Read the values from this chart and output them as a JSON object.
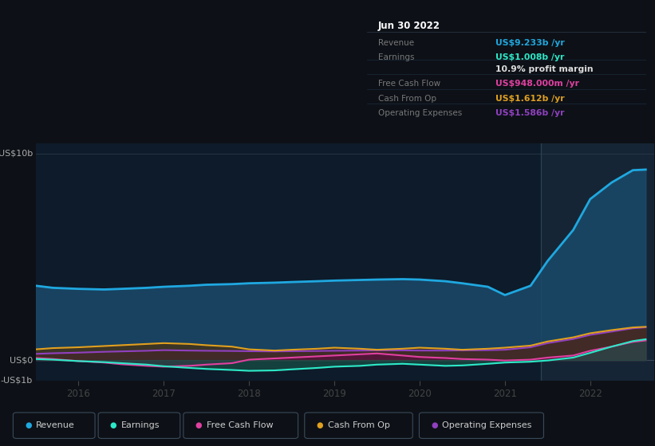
{
  "background_color": "#0d1117",
  "plot_bg_color": "#0d1b2a",
  "ylim": [
    -1.0,
    10.5
  ],
  "xlim": [
    2015.5,
    2022.75
  ],
  "xticks": [
    2016,
    2017,
    2018,
    2019,
    2020,
    2021,
    2022
  ],
  "ylabel_top": "US$10b",
  "ylabel_zero": "US$0",
  "ylabel_neg": "-US$1b",
  "legend_items": [
    {
      "label": "Revenue",
      "color": "#1fa8e0"
    },
    {
      "label": "Earnings",
      "color": "#2de8c8"
    },
    {
      "label": "Free Cash Flow",
      "color": "#e040a0"
    },
    {
      "label": "Cash From Op",
      "color": "#e0a020"
    },
    {
      "label": "Operating Expenses",
      "color": "#9040c0"
    }
  ],
  "tooltip": {
    "date": "Jun 30 2022",
    "rows": [
      {
        "label": "Revenue",
        "value": "US$9.233b /yr",
        "value_color": "#1fa8e0",
        "bold_part": "US$9.233b"
      },
      {
        "label": "Earnings",
        "value": "US$1.008b /yr",
        "value_color": "#2de8c8",
        "bold_part": "US$1.008b"
      },
      {
        "label": "",
        "value": "10.9% profit margin",
        "value_color": "#dddddd",
        "bold_part": "10.9%"
      },
      {
        "label": "Free Cash Flow",
        "value": "US$948.000m /yr",
        "value_color": "#e040a0",
        "bold_part": "US$948.000m"
      },
      {
        "label": "Cash From Op",
        "value": "US$1.612b /yr",
        "value_color": "#e0a020",
        "bold_part": "US$1.612b"
      },
      {
        "label": "Operating Expenses",
        "value": "US$1.586b /yr",
        "value_color": "#9040c0",
        "bold_part": "US$1.586b"
      }
    ]
  },
  "revenue": {
    "x": [
      2015.5,
      2015.7,
      2016.0,
      2016.3,
      2016.5,
      2016.8,
      2017.0,
      2017.3,
      2017.5,
      2017.8,
      2018.0,
      2018.3,
      2018.5,
      2018.8,
      2019.0,
      2019.3,
      2019.5,
      2019.8,
      2020.0,
      2020.3,
      2020.5,
      2020.8,
      2021.0,
      2021.3,
      2021.5,
      2021.8,
      2022.0,
      2022.25,
      2022.5,
      2022.65
    ],
    "y": [
      3.6,
      3.5,
      3.45,
      3.42,
      3.45,
      3.5,
      3.55,
      3.6,
      3.65,
      3.68,
      3.72,
      3.75,
      3.78,
      3.82,
      3.85,
      3.88,
      3.9,
      3.92,
      3.9,
      3.82,
      3.72,
      3.55,
      3.15,
      3.6,
      4.8,
      6.3,
      7.8,
      8.6,
      9.2,
      9.23
    ],
    "color": "#1fa8e0",
    "fill_color": "#1a4a6a",
    "linewidth": 2.0
  },
  "earnings": {
    "x": [
      2015.5,
      2015.7,
      2016.0,
      2016.3,
      2016.5,
      2016.8,
      2017.0,
      2017.3,
      2017.5,
      2017.8,
      2018.0,
      2018.3,
      2018.5,
      2018.8,
      2019.0,
      2019.3,
      2019.5,
      2019.8,
      2020.0,
      2020.3,
      2020.5,
      2020.8,
      2021.0,
      2021.3,
      2021.5,
      2021.8,
      2022.0,
      2022.25,
      2022.5,
      2022.65
    ],
    "y": [
      0.05,
      0.02,
      -0.05,
      -0.1,
      -0.15,
      -0.22,
      -0.3,
      -0.38,
      -0.43,
      -0.48,
      -0.52,
      -0.5,
      -0.45,
      -0.38,
      -0.32,
      -0.28,
      -0.22,
      -0.18,
      -0.22,
      -0.28,
      -0.26,
      -0.18,
      -0.12,
      -0.08,
      -0.02,
      0.12,
      0.35,
      0.65,
      0.92,
      1.008
    ],
    "color": "#2de8c8",
    "fill_color": "#1a5a4a",
    "linewidth": 1.5
  },
  "free_cash_flow": {
    "x": [
      2015.5,
      2015.7,
      2016.0,
      2016.3,
      2016.5,
      2016.8,
      2017.0,
      2017.3,
      2017.5,
      2017.8,
      2018.0,
      2018.3,
      2018.5,
      2018.8,
      2019.0,
      2019.3,
      2019.5,
      2019.8,
      2020.0,
      2020.3,
      2020.5,
      2020.8,
      2021.0,
      2021.3,
      2021.5,
      2021.8,
      2022.0,
      2022.25,
      2022.5,
      2022.65
    ],
    "y": [
      0.1,
      0.05,
      -0.05,
      -0.12,
      -0.2,
      -0.28,
      -0.32,
      -0.28,
      -0.22,
      -0.15,
      0.02,
      0.08,
      0.12,
      0.18,
      0.22,
      0.28,
      0.32,
      0.22,
      0.15,
      0.1,
      0.05,
      0.02,
      -0.02,
      0.02,
      0.12,
      0.22,
      0.45,
      0.65,
      0.88,
      0.948
    ],
    "color": "#e040a0",
    "fill_color": "#5a1040",
    "linewidth": 1.5
  },
  "cash_from_op": {
    "x": [
      2015.5,
      2015.7,
      2016.0,
      2016.3,
      2016.5,
      2016.8,
      2017.0,
      2017.3,
      2017.5,
      2017.8,
      2018.0,
      2018.3,
      2018.5,
      2018.8,
      2019.0,
      2019.3,
      2019.5,
      2019.8,
      2020.0,
      2020.3,
      2020.5,
      2020.8,
      2021.0,
      2021.3,
      2021.5,
      2021.8,
      2022.0,
      2022.25,
      2022.5,
      2022.65
    ],
    "y": [
      0.52,
      0.58,
      0.62,
      0.68,
      0.72,
      0.78,
      0.82,
      0.78,
      0.72,
      0.65,
      0.52,
      0.46,
      0.5,
      0.55,
      0.6,
      0.55,
      0.5,
      0.55,
      0.6,
      0.55,
      0.5,
      0.55,
      0.6,
      0.7,
      0.9,
      1.1,
      1.3,
      1.45,
      1.58,
      1.612
    ],
    "color": "#e0a020",
    "fill_color": "#4a3010",
    "linewidth": 1.5
  },
  "op_expenses": {
    "x": [
      2015.5,
      2015.7,
      2016.0,
      2016.3,
      2016.5,
      2016.8,
      2017.0,
      2017.3,
      2017.5,
      2017.8,
      2018.0,
      2018.3,
      2018.5,
      2018.8,
      2019.0,
      2019.3,
      2019.5,
      2019.8,
      2020.0,
      2020.3,
      2020.5,
      2020.8,
      2021.0,
      2021.3,
      2021.5,
      2021.8,
      2022.0,
      2022.25,
      2022.5,
      2022.65
    ],
    "y": [
      0.3,
      0.33,
      0.36,
      0.4,
      0.42,
      0.45,
      0.48,
      0.46,
      0.45,
      0.44,
      0.43,
      0.42,
      0.43,
      0.44,
      0.45,
      0.46,
      0.47,
      0.47,
      0.46,
      0.46,
      0.47,
      0.48,
      0.5,
      0.62,
      0.82,
      1.02,
      1.22,
      1.38,
      1.54,
      1.586
    ],
    "color": "#9040c0",
    "fill_color": "#3a1060",
    "linewidth": 1.5
  },
  "highlight_x_start": 2021.42,
  "highlight_color": "#162535"
}
